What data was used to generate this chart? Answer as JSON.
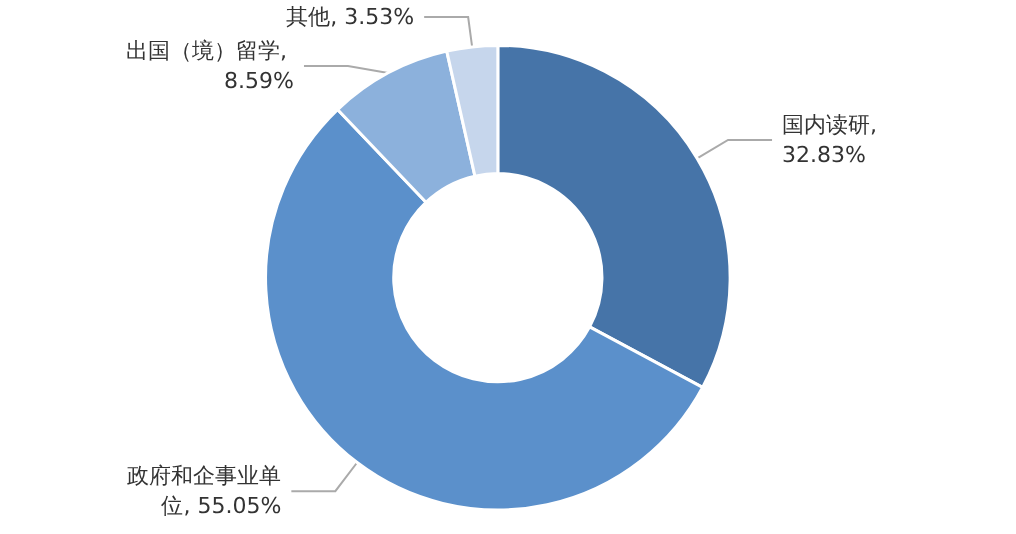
{
  "chart_data": {
    "type": "donut",
    "categories": [
      "国内读研",
      "政府和企事业单位",
      "出国（境）留学",
      "其他"
    ],
    "values": [
      32.83,
      55.05,
      8.59,
      3.53
    ],
    "value_labels": [
      ", 32.83%",
      ", 55.05%",
      ", 8.59%",
      ", 3.53%"
    ],
    "colors": [
      "#4674a8",
      "#5b90cb",
      "#8cb1dc",
      "#c6d6ec"
    ],
    "legend": false
  }
}
